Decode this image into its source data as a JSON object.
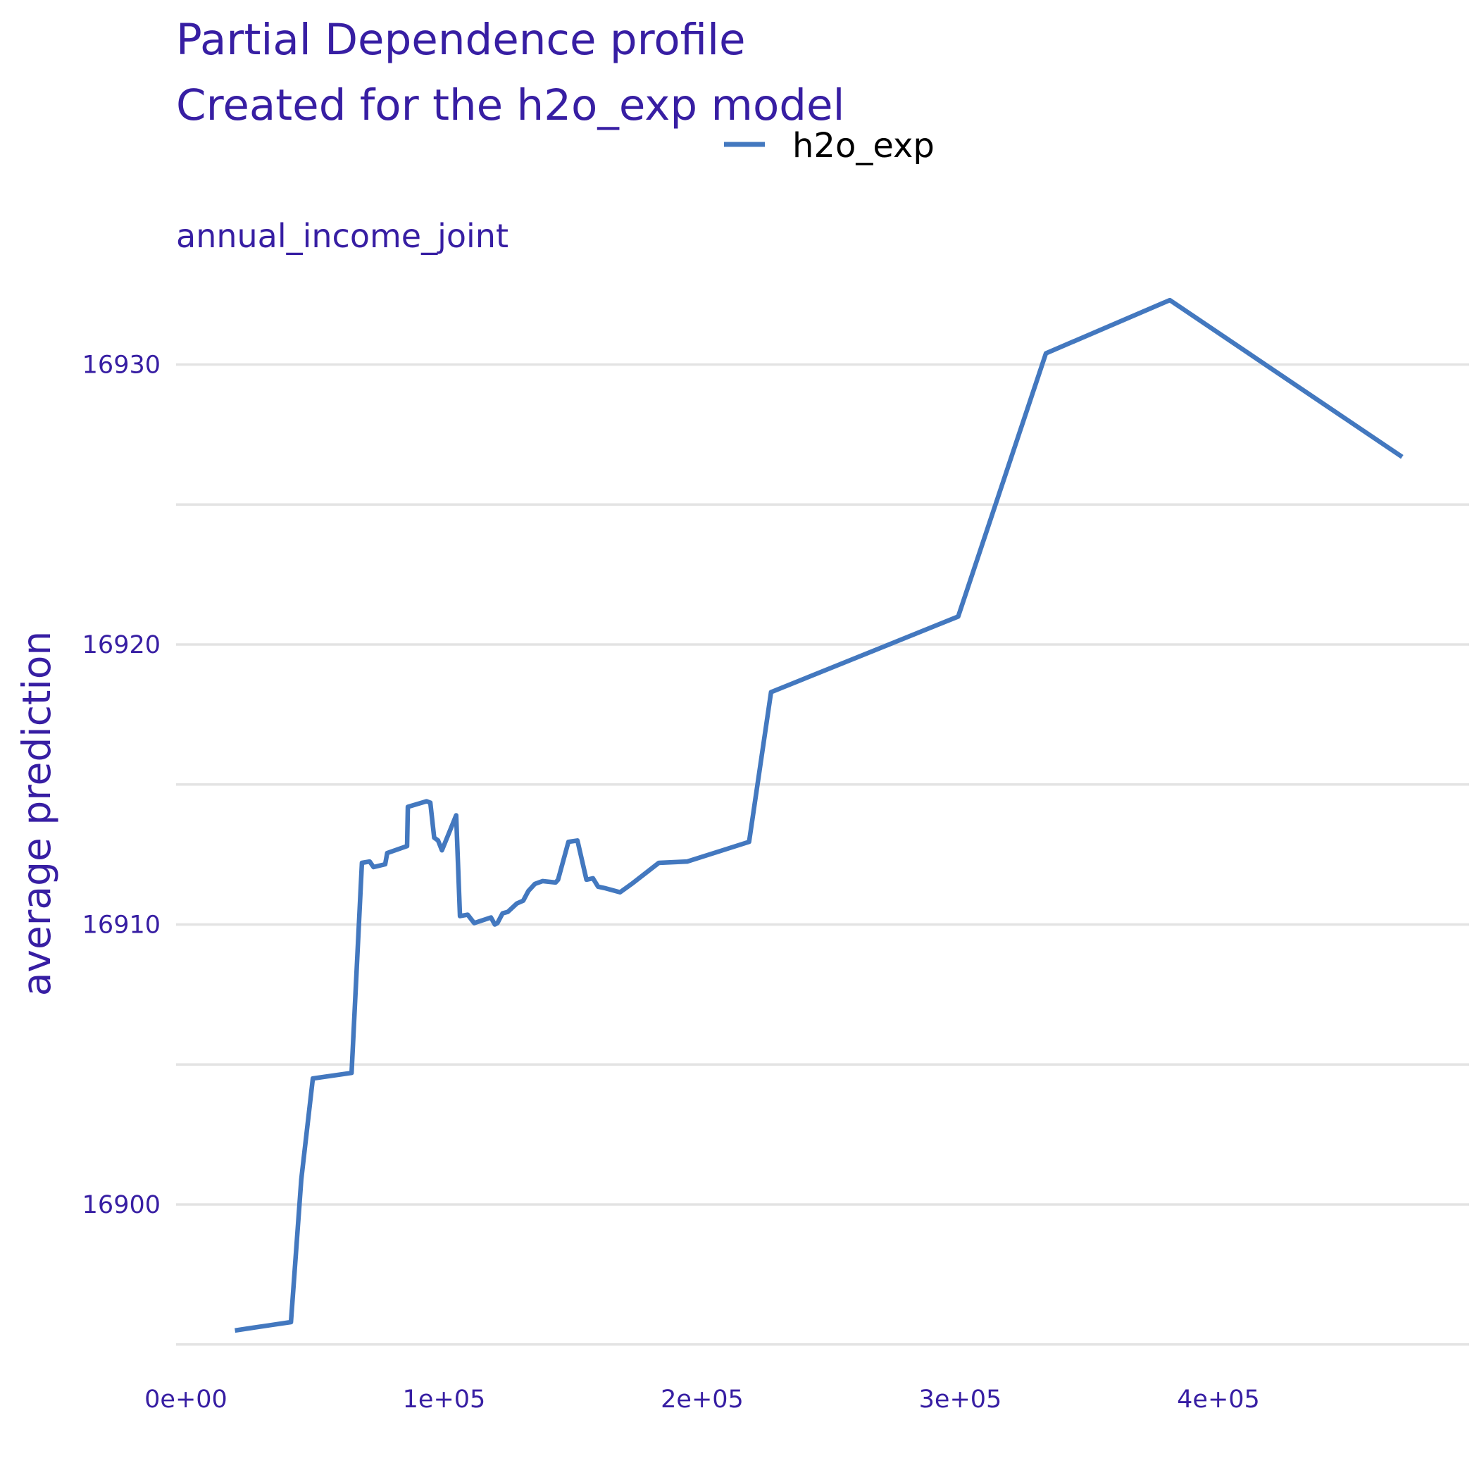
{
  "chart_data": {
    "type": "line",
    "title": "Partial Dependence profile",
    "subtitle": "Created for the h2o_exp model",
    "panel_label": "annual_income_joint",
    "xlabel": "",
    "ylabel": "average prediction",
    "xlim": [
      0,
      500000
    ],
    "ylim": [
      16895,
      16933
    ],
    "x_ticks": [
      {
        "value": 0,
        "label": "0e+00"
      },
      {
        "value": 100000,
        "label": "1e+05"
      },
      {
        "value": 200000,
        "label": "2e+05"
      },
      {
        "value": 300000,
        "label": "3e+05"
      },
      {
        "value": 400000,
        "label": "4e+05"
      }
    ],
    "y_ticks": [
      {
        "value": 16900,
        "label": "16900"
      },
      {
        "value": 16910,
        "label": "16910"
      },
      {
        "value": 16920,
        "label": "16920"
      },
      {
        "value": 16930,
        "label": "16930"
      }
    ],
    "y_gridlines": [
      16895,
      16900,
      16905,
      16910,
      16915,
      16920,
      16925,
      16930
    ],
    "grid": true,
    "legend_position": "top",
    "series": [
      {
        "name": "h2o_exp",
        "color": "#4378bf",
        "x": [
          22800,
          30000,
          44500,
          48500,
          53000,
          68000,
          72000,
          75000,
          76500,
          81000,
          81800,
          89500,
          89800,
          97000,
          98500,
          100000,
          101500,
          103000,
          108500,
          110000,
          113000,
          115500,
          122000,
          123500,
          124500,
          126500,
          128500,
          132000,
          134500,
          136500,
          139000,
          142000,
          147000,
          148000,
          152000,
          155500,
          159000,
          161500,
          163500,
          166000,
          172000,
          176500,
          187000,
          198000,
          210000,
          222000,
          230500,
          303000,
          337000,
          385000,
          475000
        ],
        "y": [
          16895.5,
          16895.6,
          16895.8,
          16900.9,
          16904.5,
          16904.7,
          16912.2,
          16912.25,
          16912.05,
          16912.15,
          16912.55,
          16912.8,
          16914.2,
          16914.4,
          16914.35,
          16913.1,
          16913.0,
          16912.65,
          16913.9,
          16910.3,
          16910.35,
          16910.05,
          16910.25,
          16910.0,
          16910.05,
          16910.4,
          16910.45,
          16910.75,
          16910.85,
          16911.2,
          16911.45,
          16911.55,
          16911.5,
          16911.6,
          16912.95,
          16913.0,
          16911.6,
          16911.65,
          16911.35,
          16911.3,
          16911.15,
          16911.45,
          16912.2,
          16912.25,
          16912.6,
          16912.95,
          16918.3,
          16921.0,
          16930.4,
          16932.3,
          16926.7
        ]
      }
    ]
  }
}
